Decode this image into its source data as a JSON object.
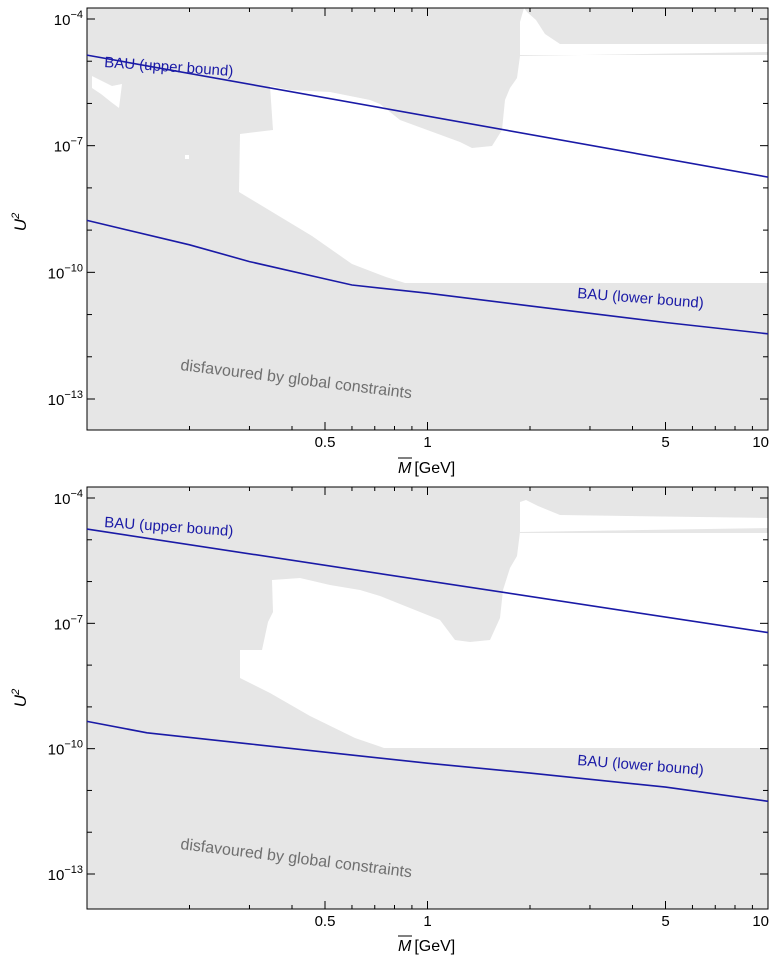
{
  "chart_data": [
    {
      "type": "area",
      "panel": "top",
      "title": "",
      "xlabel": "[GeV]",
      "xlabel_symbol": "M",
      "ylabel": "U",
      "ylabel_superscript": "2",
      "xscale": "log",
      "yscale": "log",
      "xlim": [
        0.1,
        10
      ],
      "ylim": [
        2e-15,
        0.0002
      ],
      "xticks": [
        {
          "value": 0.5,
          "label": "0.5"
        },
        {
          "value": 1,
          "label": "1"
        },
        {
          "value": 5,
          "label": "5"
        },
        {
          "value": 10,
          "label": "10"
        }
      ],
      "yticks": [
        {
          "exp": -4,
          "label": "10",
          "sup": "−4"
        },
        {
          "exp": -7,
          "label": "10",
          "sup": "−7"
        },
        {
          "exp": -10,
          "label": "10",
          "sup": "−10"
        },
        {
          "exp": -13,
          "label": "10",
          "sup": "−13"
        }
      ],
      "series": [
        {
          "name": "BAU (upper bound)",
          "color": "#1a1aa6",
          "x": [
            0.1,
            10
          ],
          "y": [
            1.4e-05,
            1.8e-08
          ]
        },
        {
          "name": "BAU (lower bound)",
          "color": "#1a1aa6",
          "x": [
            0.1,
            0.2,
            0.3,
            0.5,
            0.6,
            1.0,
            2.0,
            5.0,
            10.0
          ],
          "y": [
            1.7e-09,
            4.5e-10,
            1.8e-10,
            7e-11,
            5e-11,
            3.2e-11,
            1.6e-11,
            6.5e-12,
            3.5e-12
          ]
        }
      ],
      "regions": [
        {
          "name": "disfavoured by global constraints",
          "color": "#e6e6e6",
          "allowed_x": [
            0.128,
            0.129,
            0.14,
            0.16,
            0.195,
            0.215,
            0.22,
            0.23,
            0.25,
            0.26,
            0.26,
            0.24,
            0.225,
            0.225,
            0.3,
            0.5,
            0.8,
            1.0,
            0.9,
            0.55,
            0.3,
            0.2,
            0.145,
            0.14,
            0.13,
            0.128
          ],
          "allowed_y": [
            4e-06,
            2e-06,
            1.8e-06,
            3e-07,
            1e-07,
            1.5e-08,
            3e-09,
            1.3e-09,
            6e-10,
            2.7e-10,
            1e-10,
            1e-10,
            1e-10,
            1e-10,
            1e-10,
            1e-10,
            1e-10,
            1e-10,
            1e-10,
            1e-10,
            1e-10,
            1e-10,
            1e-10,
            1e-10,
            1e-10,
            4e-06
          ]
        }
      ],
      "annotations": [
        "BAU (upper bound)",
        "BAU (lower bound)",
        "disfavoured by global constraints"
      ],
      "grid": false,
      "legend": "none"
    },
    {
      "type": "area",
      "panel": "bottom",
      "title": "",
      "xlabel": "[GeV]",
      "xlabel_symbol": "M",
      "ylabel": "U",
      "ylabel_superscript": "2",
      "xscale": "log",
      "yscale": "log",
      "xlim": [
        0.1,
        10
      ],
      "ylim": [
        2e-15,
        0.0002
      ],
      "xticks": [
        {
          "value": 0.5,
          "label": "0.5"
        },
        {
          "value": 1,
          "label": "1"
        },
        {
          "value": 5,
          "label": "5"
        },
        {
          "value": 10,
          "label": "10"
        }
      ],
      "yticks": [
        {
          "exp": -4,
          "label": "10",
          "sup": "−4"
        },
        {
          "exp": -7,
          "label": "10",
          "sup": "−7"
        },
        {
          "exp": -10,
          "label": "10",
          "sup": "−10"
        },
        {
          "exp": -13,
          "label": "10",
          "sup": "−13"
        }
      ],
      "series": [
        {
          "name": "BAU (upper bound)",
          "color": "#1a1aa6",
          "x": [
            0.1,
            10
          ],
          "y": [
            1.8e-05,
            6e-08
          ]
        },
        {
          "name": "BAU (lower bound)",
          "color": "#1a1aa6",
          "x": [
            0.1,
            0.15,
            0.3,
            0.6,
            1.0,
            2.0,
            5.0,
            10.0
          ],
          "y": [
            4.5e-10,
            2.4e-10,
            1.3e-10,
            7e-11,
            4.5e-11,
            2.6e-11,
            1.2e-11,
            5.5e-12
          ]
        }
      ],
      "regions": [
        {
          "name": "disfavoured by global constraints",
          "color": "#e6e6e6"
        }
      ],
      "annotations": [
        "BAU (upper bound)",
        "BAU (lower bound)",
        "disfavoured by global constraints"
      ],
      "grid": false,
      "legend": "none"
    }
  ]
}
